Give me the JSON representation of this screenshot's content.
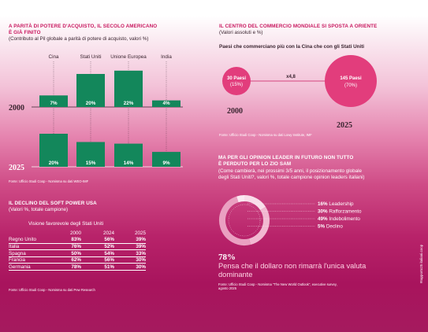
{
  "panel1": {
    "title_line1": "A PARITÀ DI POTERE D'ACQUISTO, IL SECOLO AMERICANO",
    "title_line2": "È GIÀ FINITO",
    "subtitle": "(Contributo al Pil globale a parità di potere di acquisto, valori %)",
    "source": "Fonte: Ufficio Studi Coop - Nomisma su dati WEO-IMF"
  },
  "panel2": {
    "title": "IL CENTRO DEL COMMERCIO MONDIALE SI SPOSTA A ORIENTE",
    "subtitle": "(Valori assoluti e %)",
    "heading": "Paesi che commerciano più con la Cina che con gli Stati Uniti",
    "bubble_2000_count": "30 Paesi",
    "bubble_2000_pct": "(15%)",
    "bubble_2025_count": "145 Paesi",
    "bubble_2025_pct": "(70%)",
    "multiplier": "x4,8",
    "year_2000": "2000",
    "year_2025": "2025",
    "source": "Fonte: Ufficio Studi Coop - Nomisma su dati Lowy Institute, IMF"
  },
  "panel3": {
    "title": "IL DECLINO DEL SOFT POWER USA",
    "subtitle": "(Valori %, totale campione)",
    "table_caption": "Visione favorevole  degli Stati Uniti",
    "source": "Fonte: Ufficio Studi Coop - Nomisma su dati Pew Research"
  },
  "panel4": {
    "title_line1": "MA PER GLI OPINION LEADER IN FUTURO NON TUTTO",
    "title_line2": "È PERDUTO PER LO ZIO SAM",
    "subtitle_line1": "(Come cambierà, nei prossimi 3/5 anni, il posizionamento globale",
    "subtitle_line2": "degli Stati Uniti?, valori %, totale campione opinion leaders italiani)",
    "big_pct": "78%",
    "statement_line1": "Pensa che il dollaro non rimarrà l'unica valuta",
    "statement_line2": "dominante",
    "source_line1": "Fonte: Ufficio Studi Coop - Nomisma \"The New World Outlook\", executive survey,",
    "source_line2": "agosto 2025"
  },
  "side_text": "#rapporto25 italiani.coop",
  "colors": {
    "bar_green": "#13875b",
    "accent_pink": "#c8185f",
    "bubble_pink": "#e23d7c",
    "ring_light": "#f6c7db"
  },
  "chart_data": [
    {
      "type": "bar",
      "categories": [
        "Cina",
        "Stati Uniti",
        "Unione Europea",
        "India"
      ],
      "series": [
        {
          "name": "2000",
          "values": [
            7,
            20,
            22,
            4
          ],
          "labels": [
            "7%",
            "20%",
            "22%",
            "4%"
          ]
        },
        {
          "name": "2025",
          "values": [
            20,
            15,
            14,
            9
          ],
          "labels": [
            "20%",
            "15%",
            "14%",
            "9%"
          ]
        }
      ]
    },
    {
      "type": "table",
      "columns": [
        "",
        "2000",
        "2024",
        "2025"
      ],
      "rows": [
        [
          "Regno Unito",
          "83%",
          "56%",
          "39%"
        ],
        [
          "Italia",
          "76%",
          "52%",
          "39%"
        ],
        [
          "Spagna",
          "50%",
          "54%",
          "33%"
        ],
        [
          "Francia",
          "62%",
          "56%",
          "30%"
        ],
        [
          "Germania",
          "78%",
          "51%",
          "30%"
        ]
      ]
    },
    {
      "type": "pie",
      "categories": [
        "Leadership",
        "Rafforzamento",
        "Indebolimento",
        "Declino"
      ],
      "values": [
        16,
        30,
        49,
        5
      ],
      "labels": [
        "16%",
        "30%",
        "49%",
        "5%"
      ]
    }
  ]
}
